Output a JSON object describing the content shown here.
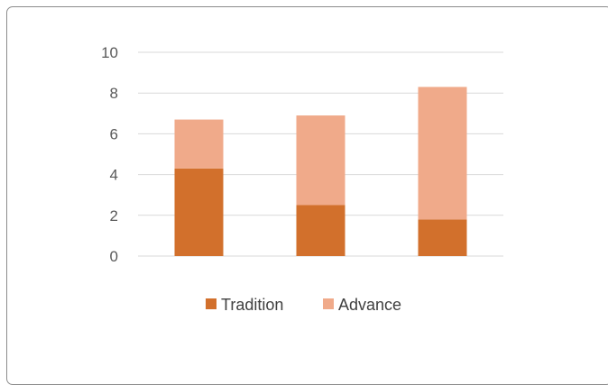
{
  "chart_data": {
    "type": "bar",
    "stacked": true,
    "categories": [
      "",
      "",
      ""
    ],
    "series": [
      {
        "name": "Tradition",
        "values": [
          4.3,
          2.5,
          1.8
        ],
        "color": "#d2702c"
      },
      {
        "name": "Advance",
        "values": [
          2.4,
          4.4,
          6.5
        ],
        "color": "#f0aa8a"
      }
    ],
    "ylim": [
      0,
      10
    ],
    "yticks": [
      "0",
      "2",
      "4",
      "6",
      "8",
      "10"
    ],
    "title": "",
    "xlabel": "",
    "ylabel": "",
    "grid": true,
    "legend_position": "bottom",
    "gridline_color": "#d9d9d9"
  }
}
